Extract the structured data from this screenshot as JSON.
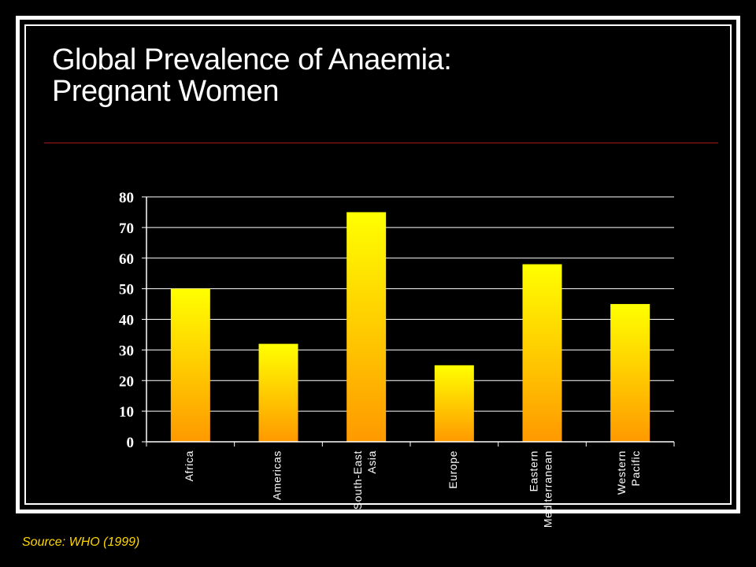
{
  "title": {
    "line1": "Global Prevalence of Anaemia:",
    "line2": "Pregnant Women"
  },
  "source": "Source: WHO (1999)",
  "colors": {
    "background": "#000000",
    "frame": "#ffffff",
    "rule": "#a01818",
    "bar_top": "#ffff00",
    "bar_bottom": "#ff9900",
    "source_text": "#ffd700"
  },
  "chart_data": {
    "type": "bar",
    "categories": [
      "Africa",
      "Americas",
      "South-East Asia",
      "Europe",
      "Eastern Mediterranean",
      "Western Pacific"
    ],
    "category_label_lines": [
      [
        "Africa"
      ],
      [
        "Americas"
      ],
      [
        "South-East",
        "Asia"
      ],
      [
        "Europe"
      ],
      [
        "Eastern",
        "Mediterranean"
      ],
      [
        "Western",
        "Pacific"
      ]
    ],
    "values": [
      50,
      32,
      75,
      25,
      58,
      45
    ],
    "ylim": [
      0,
      80
    ],
    "yticks": [
      0,
      10,
      20,
      30,
      40,
      50,
      60,
      70,
      80
    ],
    "grid": true,
    "title": "",
    "xlabel": "",
    "ylabel": ""
  }
}
